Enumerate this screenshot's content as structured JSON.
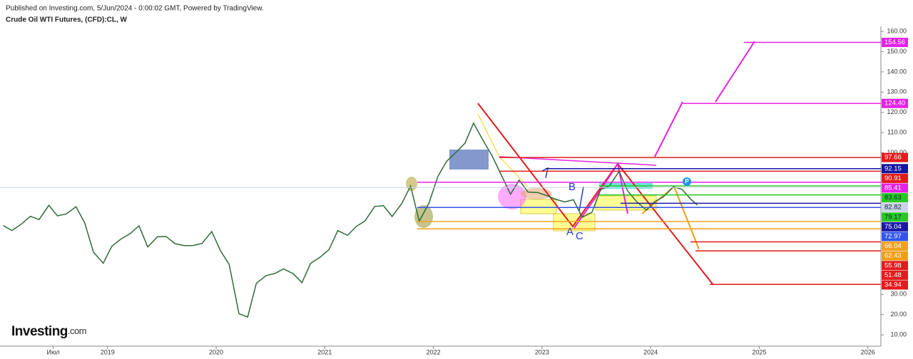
{
  "chart_data": {
    "type": "line",
    "subtitle": "Published on Investing.com, 5/Jun/2024 - 0:00:02 GMT, Powered by TradingView.",
    "title": "Crude Oil WTI Futures, (CFD):CL, W",
    "logo": "Investing",
    "logo_suffix": ".com",
    "color": "#2f6b3a",
    "x": [
      2018.04,
      2018.12,
      2018.21,
      2018.29,
      2018.37,
      2018.46,
      2018.54,
      2018.62,
      2018.71,
      2018.79,
      2018.87,
      2018.96,
      2019.04,
      2019.12,
      2019.21,
      2019.29,
      2019.37,
      2019.46,
      2019.54,
      2019.62,
      2019.71,
      2019.79,
      2019.87,
      2019.96,
      2020.04,
      2020.12,
      2020.21,
      2020.29,
      2020.37,
      2020.46,
      2020.54,
      2020.62,
      2020.71,
      2020.79,
      2020.87,
      2020.96,
      2021.04,
      2021.12,
      2021.21,
      2021.29,
      2021.37,
      2021.46,
      2021.54,
      2021.62,
      2021.71,
      2021.79,
      2021.87,
      2021.96,
      2022.04,
      2022.12,
      2022.21,
      2022.29,
      2022.37,
      2022.46,
      2022.54,
      2022.62,
      2022.71,
      2022.79,
      2022.87,
      2022.96,
      2023.04,
      2023.12,
      2023.21,
      2023.29,
      2023.37,
      2023.46,
      2023.54,
      2023.62,
      2023.71,
      2023.79,
      2023.87,
      2023.96,
      2024.04,
      2024.12,
      2024.21,
      2024.29,
      2024.37,
      2024.43
    ],
    "values": [
      64,
      61.6,
      64.9,
      68.6,
      67,
      74,
      68.8,
      69.8,
      73.3,
      65.3,
      50.9,
      45.4,
      53.8,
      57.2,
      60.1,
      63.9,
      53.5,
      58.5,
      58.6,
      55.1,
      54.1,
      54.2,
      55.2,
      61.1,
      51.6,
      44.8,
      20.5,
      18.8,
      35.5,
      39.3,
      40.3,
      42.6,
      40.2,
      35.8,
      45.3,
      48.5,
      52.2,
      61.5,
      59.2,
      63.6,
      66.3,
      73.5,
      73.9,
      68.5,
      75,
      83.6,
      66.2,
      75.2,
      88.2,
      95.7,
      100.3,
      104.7,
      114.7,
      105.8,
      98.6,
      89.6,
      79.5,
      86.5,
      80.6,
      80.3,
      78.9,
      77.1,
      75.7,
      76.8,
      68.1,
      70.6,
      81.8,
      83.6,
      90.8,
      81,
      75.9,
      71.7,
      75.9,
      78.3,
      83.2,
      81.9,
      77,
      74.2
    ],
    "xlim": [
      2018.01,
      2026.12
    ],
    "xticks": [
      {
        "value": 2018.5,
        "label": "Июл"
      },
      2019,
      2020,
      2021,
      2022,
      2023,
      2024,
      2025,
      2026
    ],
    "ylim": [
      4.4,
      162.5
    ],
    "yticks": [
      {
        "value": 10,
        "label": "10.00"
      },
      {
        "value": 20,
        "label": "20.00"
      },
      {
        "value": 30,
        "label": "30.00"
      },
      {
        "value": 100,
        "label": "100.00"
      },
      {
        "value": 110,
        "label": "110.00"
      },
      {
        "value": 120,
        "label": "120.00"
      },
      {
        "value": 130,
        "label": "130.00"
      },
      {
        "value": 140,
        "label": "140.00"
      },
      {
        "value": 150,
        "label": "150.00"
      },
      {
        "value": 160,
        "label": "160.00"
      }
    ],
    "price_levels": {
      "values": [
        154.56,
        124.4,
        97.66,
        92.15,
        90.91,
        85.41,
        83.63,
        82.82,
        79.17,
        75.04,
        72.97,
        66.04,
        62.43,
        55.98,
        51.48,
        34.94
      ],
      "value_labels": [
        "154.56",
        "124.40",
        "97.66",
        "92.15",
        "90.91",
        "85.41",
        "83.63",
        "82.82",
        "79.17",
        "75.04",
        "72.97",
        "66.04",
        "62.43",
        "55.98",
        "51.48",
        "34.94"
      ],
      "colors": [
        "#e522e5",
        "#e522e5",
        "#e31b1b",
        "#1414a0",
        "#e31b1b",
        "#e522e5",
        "#27c927",
        "#c9d3e6",
        "#27c927",
        "#1a1aa8",
        "#3355ee",
        "#f0a020",
        "#f39c12",
        "#e31b1b",
        "#e31b1b",
        "#e31b1b"
      ]
    },
    "annotations": [
      "A",
      "B",
      "C",
      "P"
    ]
  }
}
